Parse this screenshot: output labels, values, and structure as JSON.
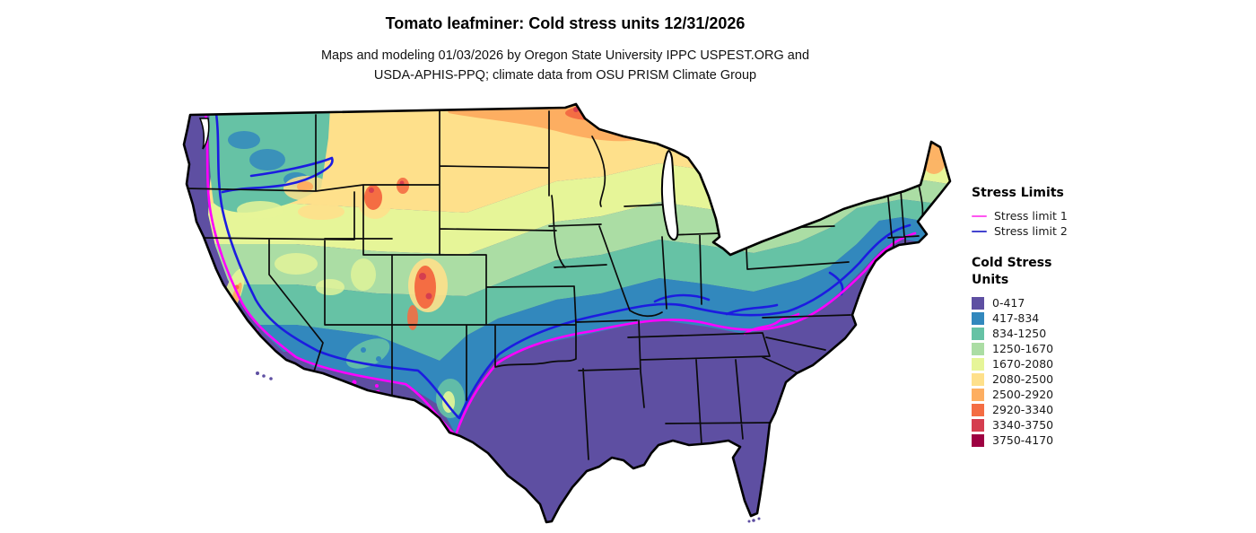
{
  "header": {
    "title": "Tomato leafminer: Cold stress units 12/31/2026",
    "subtitle_line1": "Maps and modeling 01/03/2026 by Oregon State University IPPC USPEST.ORG and",
    "subtitle_line2": "USDA-APHIS-PPQ; climate data from OSU PRISM Climate Group"
  },
  "legend": {
    "stress_limits": {
      "heading": "Stress Limits",
      "items": [
        {
          "label": "Stress limit 1",
          "color": "#ff55f0"
        },
        {
          "label": "Stress limit 2",
          "color": "#4343cf"
        }
      ]
    },
    "cold_stress": {
      "heading_line1": "Cold Stress",
      "heading_line2": "Units",
      "classes": [
        {
          "label": "0-417",
          "color": "#5e4fa2"
        },
        {
          "label": "417-834",
          "color": "#3288bd"
        },
        {
          "label": "834-1250",
          "color": "#66c2a5"
        },
        {
          "label": "1250-1670",
          "color": "#abdda4"
        },
        {
          "label": "1670-2080",
          "color": "#e6f598"
        },
        {
          "label": "2080-2500",
          "color": "#fee08b"
        },
        {
          "label": "2500-2920",
          "color": "#fdae61"
        },
        {
          "label": "2920-3340",
          "color": "#f46d43"
        },
        {
          "label": "3340-3750",
          "color": "#d53e4f"
        },
        {
          "label": "3750-4170",
          "color": "#9e0142"
        }
      ]
    }
  },
  "map": {
    "region": "Continental United States",
    "contour_lines": [
      {
        "label": "Stress limit 1",
        "color": "#ff00ff"
      },
      {
        "label": "Stress limit 2",
        "color": "#1c1ce0"
      }
    ]
  }
}
